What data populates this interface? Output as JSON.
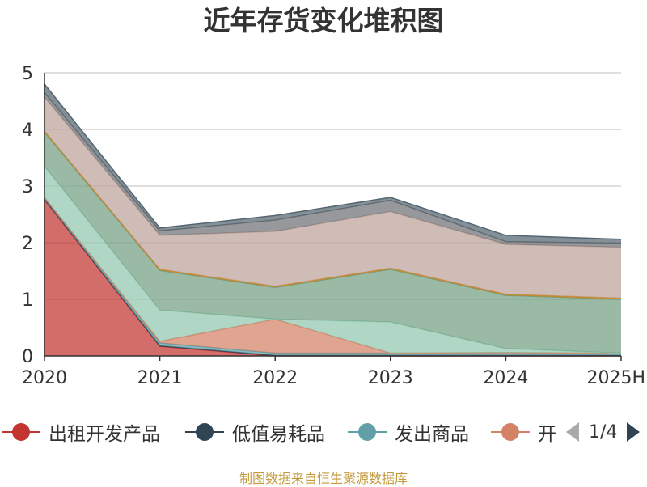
{
  "title": "近年存货变化堆积图",
  "source_note": "制图数据来自恒生聚源数据库",
  "legend_pager": {
    "text": "1/4",
    "prev_icon": "triangle-left-icon",
    "next_icon": "triangle-right-icon"
  },
  "chart_data": {
    "type": "area",
    "stacked": true,
    "title": "近年存货变化堆积图",
    "ylabel": "",
    "ylim": [
      0,
      5
    ],
    "yticks": [
      "0",
      "1",
      "2",
      "3",
      "4",
      "5"
    ],
    "categories": [
      "2020",
      "2021",
      "2022",
      "2023",
      "2024",
      "2025H"
    ],
    "grid": true,
    "legend_position": "bottom",
    "series": [
      {
        "name": "出租开发产品",
        "color": "#c23531",
        "values": [
          2.76,
          0.17,
          0.0,
          0.0,
          0.0,
          0.0
        ]
      },
      {
        "name": "低值易耗品",
        "color": "#2f4554",
        "values": [
          0.01,
          0.01,
          0.01,
          0.01,
          0.01,
          0.01
        ]
      },
      {
        "name": "发出商品",
        "color": "#61a0a8",
        "values": [
          0.03,
          0.05,
          0.04,
          0.04,
          0.05,
          0.04
        ]
      },
      {
        "name": "开",
        "color": "#d48265",
        "values": [
          0.0,
          0.03,
          0.6,
          0.0,
          0.0,
          0.0
        ]
      },
      {
        "color": "#91c7ae",
        "values": [
          0.55,
          0.55,
          0.0,
          0.55,
          0.07,
          0.0
        ]
      },
      {
        "color": "#749f83",
        "values": [
          0.6,
          0.7,
          0.56,
          0.93,
          0.94,
          0.95
        ]
      },
      {
        "color": "#ca8622",
        "values": [
          0.02,
          0.02,
          0.02,
          0.02,
          0.02,
          0.02
        ]
      },
      {
        "color": "#bda29a",
        "values": [
          0.6,
          0.6,
          0.97,
          1.0,
          0.88,
          0.9
        ]
      },
      {
        "color": "#6e7074",
        "values": [
          0.08,
          0.08,
          0.2,
          0.2,
          0.05,
          0.07
        ]
      },
      {
        "color": "#546570",
        "values": [
          0.15,
          0.05,
          0.08,
          0.05,
          0.11,
          0.07
        ]
      }
    ],
    "legend_visible": [
      "出租开发产品",
      "低值易耗品",
      "发出商品",
      "开"
    ]
  }
}
